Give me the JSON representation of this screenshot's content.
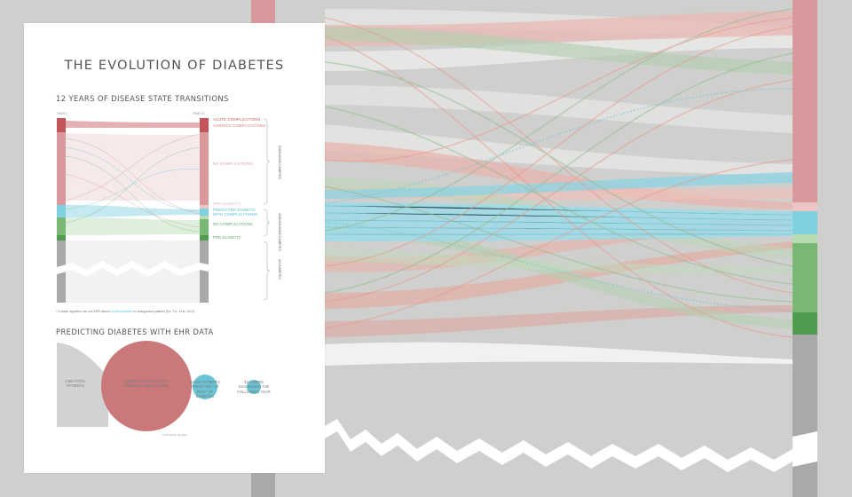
{
  "poster": {
    "title": "THE EVOLUTION OF DIABETES",
    "section1_title": "12 YEARS OF DISEASE STATE TRANSITIONS",
    "year_left": "YEAR 0",
    "year_right": "YEAR 12",
    "state_labels": [
      {
        "text": "ACUTE COMPLICATIONS",
        "color": "#c0555a"
      },
      {
        "text": "CHRONIC COMPLICATIONS",
        "color": "#d07b7b"
      },
      {
        "text": "NO COMPLICATIONS",
        "color": "#d9a0a0"
      },
      {
        "text": "PRE-DIABETIC",
        "color": "#e2b8b8"
      },
      {
        "text": "PREDICTED DIABETIC",
        "color": "#4fb8cc"
      },
      {
        "text": "WITH COMPLICATIONS",
        "color": "#4fb8cc"
      },
      {
        "text": "NO COMPLICATIONS",
        "color": "#5aa860"
      },
      {
        "text": "PRE-DIABETIC",
        "color": "#5aa860"
      }
    ],
    "group_labels": [
      "DIAGNOSED DIABETES",
      "UNDIAGNOSED DIABETES",
      "NO DIABETES"
    ],
    "footnote_prefix": "* A stable algorithm can use EHR data to",
    "footnote_link": "predict diabetes",
    "footnote_suffix": "in undiagnosed patients (Ho, T.A., et al. 2014).",
    "section2_title": "PREDICTING DIABETES WITH EHR DATA",
    "captions": [
      "2.5M TOTAL PATIENTS",
      "440,000 PATIENTS WITH DIABETES INDICATIONS",
      "54,000 PATIENTS PREDICTED \"AT RISK\" OF DIABETES",
      "31% WERE DIAGNOSED THE FOLLOWING YEAR"
    ],
    "credit": "© 2015 Heidi. All rights"
  },
  "colors": {
    "acute": "#c2545a",
    "chronic": "#d9999c",
    "predicted": "#7fd0e0",
    "undiag_light": "#b7dcb3",
    "undiag": "#79b874",
    "undiag_dark": "#519c4f",
    "none": "#a9a9ac",
    "background": "#cfcfce"
  }
}
